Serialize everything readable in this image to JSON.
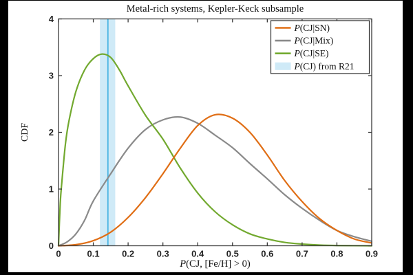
{
  "canvas": {
    "background": "#000000",
    "figure_background": "#ffffff"
  },
  "chart_data": {
    "type": "line",
    "title": "Metal-rich systems, Kepler-Keck subsample",
    "xlabel": "P(CJ, [Fe/H] > 0)",
    "ylabel": "CDF",
    "xlim": [
      0,
      0.9
    ],
    "ylim": [
      0,
      4
    ],
    "xticks": [
      "0",
      "0.1",
      "0.2",
      "0.3",
      "0.4",
      "0.5",
      "0.6",
      "0.7",
      "0.8",
      "0.9"
    ],
    "xtick_values": [
      0,
      0.1,
      0.2,
      0.3,
      0.4,
      0.5,
      0.6,
      0.7,
      0.8,
      0.9
    ],
    "yticks": [
      "0",
      "1",
      "2",
      "3",
      "4"
    ],
    "ytick_values": [
      0,
      1,
      2,
      3,
      4
    ],
    "grid": false,
    "box": true,
    "legend_position": "top-right",
    "axis_color": "#3a3a3a",
    "tick_label_color": "#222222",
    "series": [
      {
        "name": "P(CJ|Mix)",
        "color": "#8a8a8a",
        "x": [
          0,
          0.025,
          0.05,
          0.075,
          0.1,
          0.15,
          0.2,
          0.25,
          0.3,
          0.35,
          0.4,
          0.45,
          0.5,
          0.55,
          0.6,
          0.65,
          0.7,
          0.75,
          0.8,
          0.85,
          0.9
        ],
        "y": [
          0,
          0.07,
          0.21,
          0.45,
          0.79,
          1.27,
          1.72,
          2.05,
          2.22,
          2.27,
          2.16,
          1.95,
          1.73,
          1.45,
          1.18,
          0.9,
          0.66,
          0.45,
          0.27,
          0.16,
          0.08
        ]
      },
      {
        "name": "P(CJ|SE)",
        "color": "#72a92f",
        "x": [
          0,
          0.005,
          0.01,
          0.02,
          0.03,
          0.05,
          0.075,
          0.1,
          0.125,
          0.15,
          0.175,
          0.2,
          0.25,
          0.3,
          0.35,
          0.4,
          0.45,
          0.5,
          0.55,
          0.6,
          0.65,
          0.7,
          0.75,
          0.8,
          0.9
        ],
        "y": [
          0,
          0.75,
          1.15,
          1.8,
          2.2,
          2.72,
          3.1,
          3.3,
          3.38,
          3.32,
          3.1,
          2.82,
          2.3,
          1.88,
          1.37,
          0.93,
          0.6,
          0.37,
          0.21,
          0.12,
          0.06,
          0.03,
          0.013,
          0.005,
          0
        ]
      },
      {
        "name": "P(CJ|SN)",
        "color": "#e06e15",
        "x": [
          0,
          0.05,
          0.1,
          0.15,
          0.2,
          0.25,
          0.3,
          0.35,
          0.4,
          0.45,
          0.5,
          0.55,
          0.6,
          0.65,
          0.7,
          0.75,
          0.8,
          0.85,
          0.9
        ],
        "y": [
          0,
          0.02,
          0.09,
          0.24,
          0.5,
          0.85,
          1.27,
          1.72,
          2.12,
          2.31,
          2.25,
          2.0,
          1.6,
          1.15,
          0.78,
          0.48,
          0.27,
          0.12,
          0.05
        ]
      }
    ],
    "legend_order": [
      "P(CJ|SN)",
      "P(CJ|Mix)",
      "P(CJ|SE)",
      "P(CJ) from R21"
    ],
    "band": {
      "name": "P(CJ) from R21",
      "x_start": 0.119,
      "x_end": 0.163,
      "line_x": 0.142,
      "fill_color": "#cfeaf7",
      "line_color": "#49b4e2"
    }
  }
}
